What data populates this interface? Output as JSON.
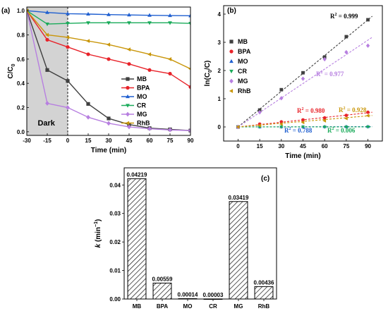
{
  "chart_data": [
    {
      "panel_label": "(a)",
      "type": "line",
      "x": [
        -30,
        -15,
        0,
        15,
        30,
        45,
        60,
        75,
        90
      ],
      "x_ticks": [
        -30,
        -15,
        0,
        15,
        30,
        45,
        60,
        75,
        90
      ],
      "y_ticks": [
        0.0,
        0.2,
        0.4,
        0.6,
        0.8,
        1.0
      ],
      "xlim": [
        -30,
        90
      ],
      "ylim": [
        -0.03,
        1.03
      ],
      "xlabel": "Time (min)",
      "ylabel_main": "C/C",
      "ylabel_sub": "0",
      "dark_region": {
        "label": "Dark",
        "x_range": [
          -30,
          0
        ],
        "color": "#d3d3d3"
      },
      "legend_placement": "center-right",
      "series": [
        {
          "name": "MB",
          "color": "#404040",
          "marker": "square",
          "values": [
            1.0,
            0.51,
            0.42,
            0.23,
            0.11,
            0.06,
            0.03,
            0.02,
            0.01
          ]
        },
        {
          "name": "BPA",
          "color": "#e8232a",
          "marker": "circle",
          "values": [
            1.0,
            0.76,
            0.7,
            0.64,
            0.6,
            0.56,
            0.51,
            0.48,
            0.37
          ]
        },
        {
          "name": "MO",
          "color": "#1f5fd0",
          "marker": "triangle-up",
          "values": [
            1.0,
            0.985,
            0.975,
            0.972,
            0.968,
            0.965,
            0.962,
            0.96,
            0.958
          ]
        },
        {
          "name": "CR",
          "color": "#1aab5a",
          "marker": "triangle-down",
          "values": [
            1.0,
            0.89,
            0.895,
            0.9,
            0.9,
            0.9,
            0.9,
            0.9,
            0.895
          ]
        },
        {
          "name": "MG",
          "color": "#b77fe0",
          "marker": "diamond",
          "values": [
            1.0,
            0.235,
            0.2,
            0.12,
            0.07,
            0.04,
            0.025,
            0.015,
            0.01
          ]
        },
        {
          "name": "RhB",
          "color": "#c9960a",
          "marker": "triangle-left",
          "values": [
            1.0,
            0.8,
            0.78,
            0.75,
            0.72,
            0.68,
            0.64,
            0.6,
            0.52
          ]
        }
      ]
    },
    {
      "panel_label": "(b)",
      "type": "scatter",
      "x_ticks": [
        0,
        15,
        30,
        45,
        60,
        75,
        90
      ],
      "y_ticks": [
        0,
        1,
        2,
        3,
        4
      ],
      "xlim": [
        -10,
        100
      ],
      "ylim": [
        -0.5,
        4.3
      ],
      "xlabel": "Time (min)",
      "ylabel_parts": [
        "ln(C",
        "0",
        "/C)"
      ],
      "legend_placement": "top-left",
      "fit_lines": "dashed",
      "series": [
        {
          "name": "MB",
          "color": "#404040",
          "marker": "square",
          "x": [
            0,
            15,
            30,
            45,
            60,
            75,
            90
          ],
          "y": [
            0,
            0.6,
            1.32,
            1.92,
            2.48,
            3.2,
            3.8
          ],
          "fit_slope": 0.04219,
          "r2_label": "R² = 0.999"
        },
        {
          "name": "BPA",
          "color": "#e8232a",
          "marker": "circle",
          "x": [
            0,
            15,
            30,
            45,
            60,
            75,
            90
          ],
          "y": [
            0,
            0.1,
            0.18,
            0.25,
            0.32,
            0.41,
            0.52
          ],
          "fit_slope": 0.00559,
          "r2_label": "R² = 0.980"
        },
        {
          "name": "MO",
          "color": "#1f5fd0",
          "marker": "triangle-up",
          "x": [
            0,
            15,
            30,
            45,
            60,
            75,
            90
          ],
          "y": [
            0,
            0.003,
            0.006,
            0.008,
            0.01,
            0.012,
            0.013
          ],
          "fit_slope": 0.00014,
          "r2_label": "R² = 0.788"
        },
        {
          "name": "CR",
          "color": "#1aab5a",
          "marker": "triangle-down",
          "x": [
            0,
            15,
            30,
            45,
            60,
            75,
            90
          ],
          "y": [
            0,
            0.0,
            0.0,
            0.0,
            0.0,
            0.0,
            0.003
          ],
          "fit_slope": 3e-05,
          "r2_label": "R² = 0.006"
        },
        {
          "name": "MG",
          "color": "#b77fe0",
          "marker": "diamond",
          "x": [
            0,
            15,
            30,
            45,
            60,
            75,
            90
          ],
          "y": [
            0,
            0.52,
            1.02,
            1.71,
            2.4,
            2.65,
            2.88
          ],
          "fit_slope": 0.03419,
          "r2_label": "R² = 0.977"
        },
        {
          "name": "RhB",
          "color": "#c9960a",
          "marker": "triangle-left",
          "x": [
            0,
            15,
            30,
            45,
            60,
            75,
            90
          ],
          "y": [
            0,
            0.05,
            0.1,
            0.16,
            0.22,
            0.3,
            0.4
          ],
          "fit_slope": 0.00436,
          "r2_label": "R² = 0.928"
        }
      ]
    },
    {
      "panel_label": "(c)",
      "type": "bar",
      "categories": [
        "MB",
        "BPA",
        "MO",
        "CR",
        "MG",
        "RhB"
      ],
      "values": [
        0.04219,
        0.00559,
        0.00014,
        3e-05,
        0.03419,
        0.00436
      ],
      "value_labels": [
        "0.04219",
        "0.00559",
        "0.00014",
        "0.00003",
        "0.03419",
        "0.00436"
      ],
      "y_ticks": [
        "0.00",
        "0.01",
        "0.02",
        "0.03",
        "0.04"
      ],
      "ylim": [
        0,
        0.046
      ],
      "ylabel_var": "k",
      "ylabel_unit_parts": [
        " (min",
        "−1",
        ")"
      ],
      "bar_fill": "diagonal-hatch"
    }
  ]
}
